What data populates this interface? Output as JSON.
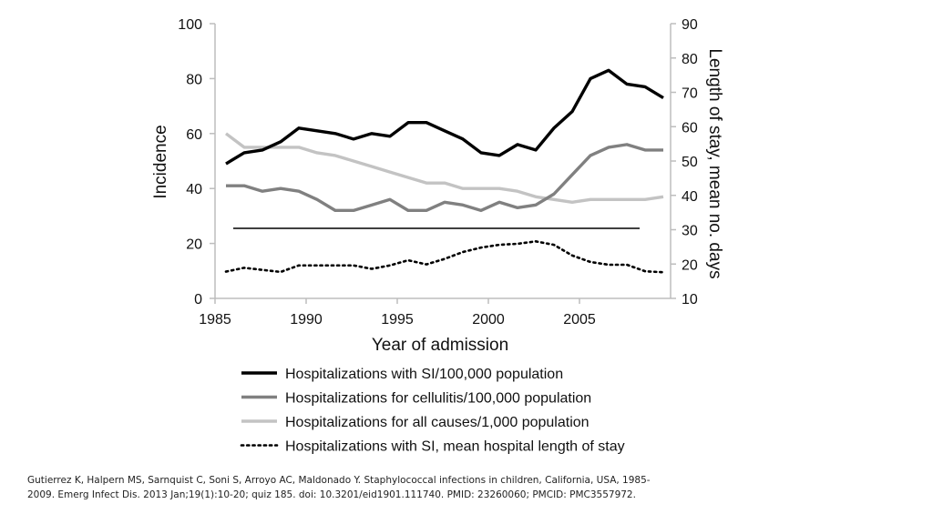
{
  "chart_data": {
    "type": "line",
    "xlabel": "Year of admission",
    "ylabel": "Incidence",
    "y2label": "Length of stay, mean no. days",
    "xlim": [
      1985,
      2010
    ],
    "ylim": [
      0,
      100
    ],
    "y2lim": [
      10,
      90
    ],
    "xticks": [
      1985,
      1990,
      1995,
      2000,
      2005
    ],
    "yticks": [
      0,
      20,
      40,
      60,
      80,
      100
    ],
    "y2ticks": [
      10,
      20,
      30,
      40,
      50,
      60,
      70,
      80,
      90
    ],
    "colors": {
      "si": "#000000",
      "cellulitis": "#808080",
      "all": "#c3c3c3",
      "los": "#000000"
    },
    "x": [
      1985,
      1986,
      1987,
      1988,
      1989,
      1990,
      1991,
      1992,
      1993,
      1994,
      1995,
      1996,
      1997,
      1998,
      1999,
      2000,
      2001,
      2002,
      2003,
      2004,
      2005,
      2006,
      2007,
      2008,
      2009
    ],
    "series": [
      {
        "key": "si",
        "name": "Hospitalizations with SI/100,000 population",
        "axis": "left",
        "style": "solid-thick",
        "values": [
          49,
          53,
          54,
          57,
          62,
          61,
          60,
          58,
          60,
          59,
          64,
          64,
          61,
          58,
          53,
          52,
          56,
          54,
          62,
          68,
          80,
          83,
          78,
          77,
          73
        ]
      },
      {
        "key": "cellulitis",
        "name": "Hospitalizations for cellulitis/100,000 population",
        "axis": "left",
        "style": "solid-thick",
        "values": [
          41,
          41,
          39,
          40,
          39,
          36,
          32,
          32,
          34,
          36,
          32,
          32,
          35,
          34,
          32,
          35,
          33,
          34,
          38,
          45,
          52,
          55,
          56,
          54,
          54
        ]
      },
      {
        "key": "all",
        "name": "Hospitalizations for all causes/1,000 population",
        "axis": "left",
        "style": "solid-thick",
        "values": [
          60,
          55,
          55,
          55,
          55,
          53,
          52,
          50,
          48,
          46,
          44,
          42,
          42,
          40,
          40,
          40,
          39,
          37,
          36,
          35,
          36,
          36,
          36,
          36,
          37
        ]
      },
      {
        "key": "los",
        "name": "Hospitalizations with SI, mean hospital length of stay",
        "axis": "right",
        "style": "dotted",
        "values": [
          17.8,
          18.9,
          18.3,
          17.7,
          19.6,
          19.6,
          19.6,
          19.6,
          18.6,
          19.6,
          21.1,
          19.9,
          21.5,
          23.5,
          24.8,
          25.6,
          25.9,
          26.6,
          25.6,
          22.5,
          20.6,
          19.8,
          19.8,
          17.9,
          17.6
        ]
      }
    ],
    "reference_line": {
      "axis": "right",
      "value": 30.4,
      "x_range": [
        1986,
        2008.3
      ]
    }
  },
  "citation": "Gutierrez K, Halpern MS, Sarnquist C, Soni S, Arroyo AC, Maldonado Y. Staphylococcal infections in children, California, USA, 1985-2009. Emerg Infect Dis. 2013 Jan;19(1):10-20; quiz 185. doi: 10.3201/eid1901.111740. PMID: 23260060; PMCID: PMC3557972."
}
